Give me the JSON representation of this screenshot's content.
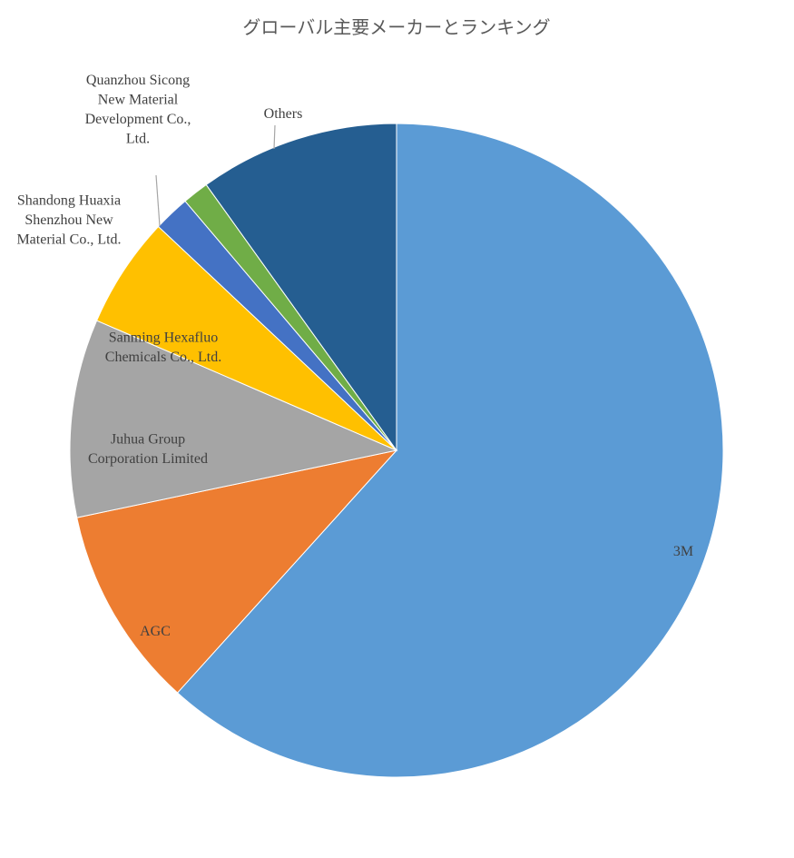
{
  "chart_data": {
    "type": "pie",
    "title": "グローバル主要メーカーとランキング",
    "start_angle_deg": 0,
    "direction": "clockwise",
    "legend": "none",
    "slices": [
      {
        "label": "3M",
        "value": 61.7,
        "color": "#5b9bd5"
      },
      {
        "label": "AGC",
        "value": 10.0,
        "color": "#ed7d31"
      },
      {
        "label": "Juhua Group Corporation Limited",
        "value": 9.8,
        "color": "#a5a5a5"
      },
      {
        "label": "Sanming Hexafluo Chemicals Co., Ltd.",
        "value": 5.5,
        "color": "#ffc000"
      },
      {
        "label": "Shandong Huaxia Shenzhou New Material Co., Ltd.",
        "value": 1.8,
        "color": "#4472c4"
      },
      {
        "label": "Quanzhou Sicong New Material Development Co., Ltd.",
        "value": 1.3,
        "color": "#70ad47"
      },
      {
        "label": "Others",
        "value": 9.9,
        "color": "#255e91"
      }
    ]
  }
}
